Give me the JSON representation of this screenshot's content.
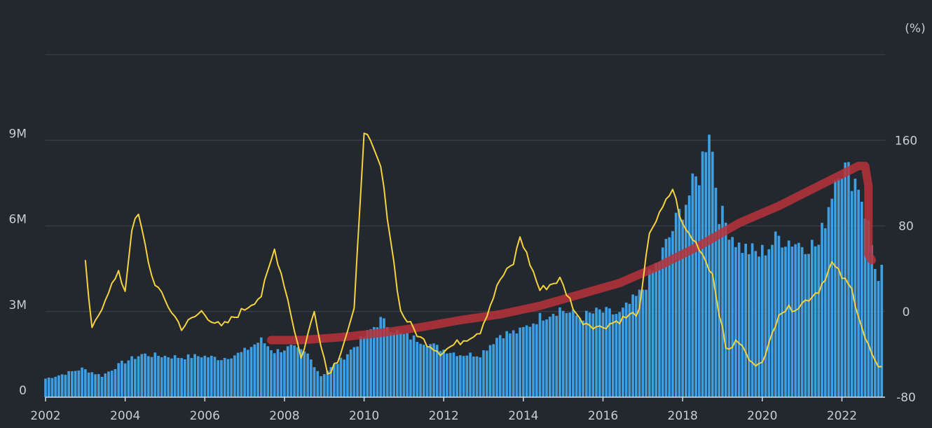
{
  "chart_data": {
    "type": "bar",
    "title": "",
    "x_axis": {
      "type": "date",
      "range": [
        "2002-01",
        "2023-02"
      ],
      "tick_labels": [
        "2002",
        "2004",
        "2006",
        "2008",
        "2010",
        "2012",
        "2014",
        "2016",
        "2018",
        "2020",
        "2022"
      ]
    },
    "y_left": {
      "range": [
        0,
        12000000
      ],
      "tick_values": [
        0,
        3000000,
        6000000,
        9000000
      ],
      "tick_labels": [
        "0",
        "3M",
        "6M",
        "9M"
      ]
    },
    "y_right": {
      "unit_label": "(%)",
      "range": [
        -80,
        240
      ],
      "tick_values": [
        -80,
        0,
        80,
        160
      ],
      "tick_labels": [
        "-80",
        "0",
        "80",
        "160"
      ]
    },
    "grid": true,
    "colors": {
      "bars": "#3f9ee0",
      "line": "#f5d33f",
      "annotation": "#b8323a",
      "background": "#23272e"
    },
    "bar_series": {
      "axis": "left",
      "interval": "monthly",
      "start": "2002-01",
      "anchors": [
        [
          "2002-01",
          0.65
        ],
        [
          "2002-06",
          0.8
        ],
        [
          "2002-12",
          1.0
        ],
        [
          "2003-06",
          0.75
        ],
        [
          "2003-12",
          1.2
        ],
        [
          "2004-06",
          1.5
        ],
        [
          "2004-12",
          1.45
        ],
        [
          "2005-06",
          1.4
        ],
        [
          "2005-12",
          1.45
        ],
        [
          "2006-06",
          1.35
        ],
        [
          "2006-12",
          1.55
        ],
        [
          "2007-06",
          2.0
        ],
        [
          "2007-10",
          1.6
        ],
        [
          "2008-03",
          1.75
        ],
        [
          "2008-08",
          1.5
        ],
        [
          "2008-12",
          0.75
        ],
        [
          "2009-06",
          1.3
        ],
        [
          "2009-12",
          2.0
        ],
        [
          "2010-06",
          2.7
        ],
        [
          "2010-12",
          2.2
        ],
        [
          "2011-06",
          2.0
        ],
        [
          "2011-12",
          1.7
        ],
        [
          "2012-06",
          1.5
        ],
        [
          "2012-12",
          1.5
        ],
        [
          "2013-06",
          2.2
        ],
        [
          "2013-12",
          2.3
        ],
        [
          "2014-06",
          2.8
        ],
        [
          "2014-12",
          3.1
        ],
        [
          "2015-06",
          2.8
        ],
        [
          "2015-12",
          3.0
        ],
        [
          "2016-06",
          2.9
        ],
        [
          "2016-12",
          3.6
        ],
        [
          "2017-06",
          4.8
        ],
        [
          "2017-12",
          6.4
        ],
        [
          "2018-06",
          7.8
        ],
        [
          "2018-09",
          9.6
        ],
        [
          "2018-12",
          6.5
        ],
        [
          "2019-06",
          5.3
        ],
        [
          "2019-12",
          5.0
        ],
        [
          "2020-06",
          5.6
        ],
        [
          "2020-12",
          5.4
        ],
        [
          "2021-06",
          5.3
        ],
        [
          "2021-12",
          8.2
        ],
        [
          "2022-06",
          7.5
        ],
        [
          "2022-09",
          6.0
        ],
        [
          "2022-12",
          4.0
        ],
        [
          "2023-01",
          4.4
        ]
      ]
    },
    "line_series": {
      "axis": "right",
      "interval": "monthly",
      "start": "2003-01",
      "anchors": [
        [
          "2003-01",
          45
        ],
        [
          "2003-03",
          -18
        ],
        [
          "2003-08",
          20
        ],
        [
          "2003-11",
          35
        ],
        [
          "2004-01",
          20
        ],
        [
          "2004-03",
          78
        ],
        [
          "2004-05",
          90
        ],
        [
          "2004-09",
          33
        ],
        [
          "2004-12",
          15
        ],
        [
          "2005-06",
          -15
        ],
        [
          "2005-12",
          0
        ],
        [
          "2006-06",
          -15
        ],
        [
          "2006-12",
          0
        ],
        [
          "2007-06",
          15
        ],
        [
          "2007-10",
          58
        ],
        [
          "2008-01",
          25
        ],
        [
          "2008-06",
          -44
        ],
        [
          "2008-10",
          0
        ],
        [
          "2009-02",
          -58
        ],
        [
          "2009-05",
          -45
        ],
        [
          "2009-10",
          0
        ],
        [
          "2010-01",
          170
        ],
        [
          "2010-06",
          135
        ],
        [
          "2010-12",
          0
        ],
        [
          "2011-06",
          -25
        ],
        [
          "2011-12",
          -38
        ],
        [
          "2012-06",
          -28
        ],
        [
          "2012-12",
          -18
        ],
        [
          "2013-06",
          30
        ],
        [
          "2013-10",
          45
        ],
        [
          "2013-12",
          70
        ],
        [
          "2014-06",
          20
        ],
        [
          "2014-12",
          30
        ],
        [
          "2015-06",
          -8
        ],
        [
          "2015-12",
          -15
        ],
        [
          "2016-06",
          -8
        ],
        [
          "2016-12",
          0
        ],
        [
          "2017-03",
          75
        ],
        [
          "2017-06",
          90
        ],
        [
          "2017-10",
          115
        ],
        [
          "2018-01",
          80
        ],
        [
          "2018-06",
          60
        ],
        [
          "2018-10",
          35
        ],
        [
          "2019-02",
          -35
        ],
        [
          "2019-06",
          -28
        ],
        [
          "2019-10",
          -50
        ],
        [
          "2020-02",
          -42
        ],
        [
          "2020-06",
          0
        ],
        [
          "2020-12",
          5
        ],
        [
          "2021-06",
          20
        ],
        [
          "2021-10",
          45
        ],
        [
          "2022-04",
          20
        ],
        [
          "2022-08",
          -25
        ],
        [
          "2022-12",
          -55
        ],
        [
          "2023-01",
          -54
        ]
      ]
    },
    "annotation_trend": {
      "axis": "left",
      "description": "hand-drawn marker stroke",
      "points": [
        [
          "2007-09",
          2.0
        ],
        [
          "2008-06",
          2.0
        ],
        [
          "2009-06",
          2.1
        ],
        [
          "2010-06",
          2.25
        ],
        [
          "2011-06",
          2.45
        ],
        [
          "2012-06",
          2.7
        ],
        [
          "2013-06",
          2.9
        ],
        [
          "2014-06",
          3.2
        ],
        [
          "2015-06",
          3.6
        ],
        [
          "2016-06",
          4.0
        ],
        [
          "2017-06",
          4.6
        ],
        [
          "2018-06",
          5.3
        ],
        [
          "2019-06",
          6.1
        ],
        [
          "2020-06",
          6.7
        ],
        [
          "2021-06",
          7.4
        ],
        [
          "2022-06",
          8.1
        ],
        [
          "2022-08",
          8.1
        ],
        [
          "2022-09",
          7.4
        ],
        [
          "2022-09",
          5.0
        ],
        [
          "2022-10",
          4.8
        ]
      ]
    }
  }
}
